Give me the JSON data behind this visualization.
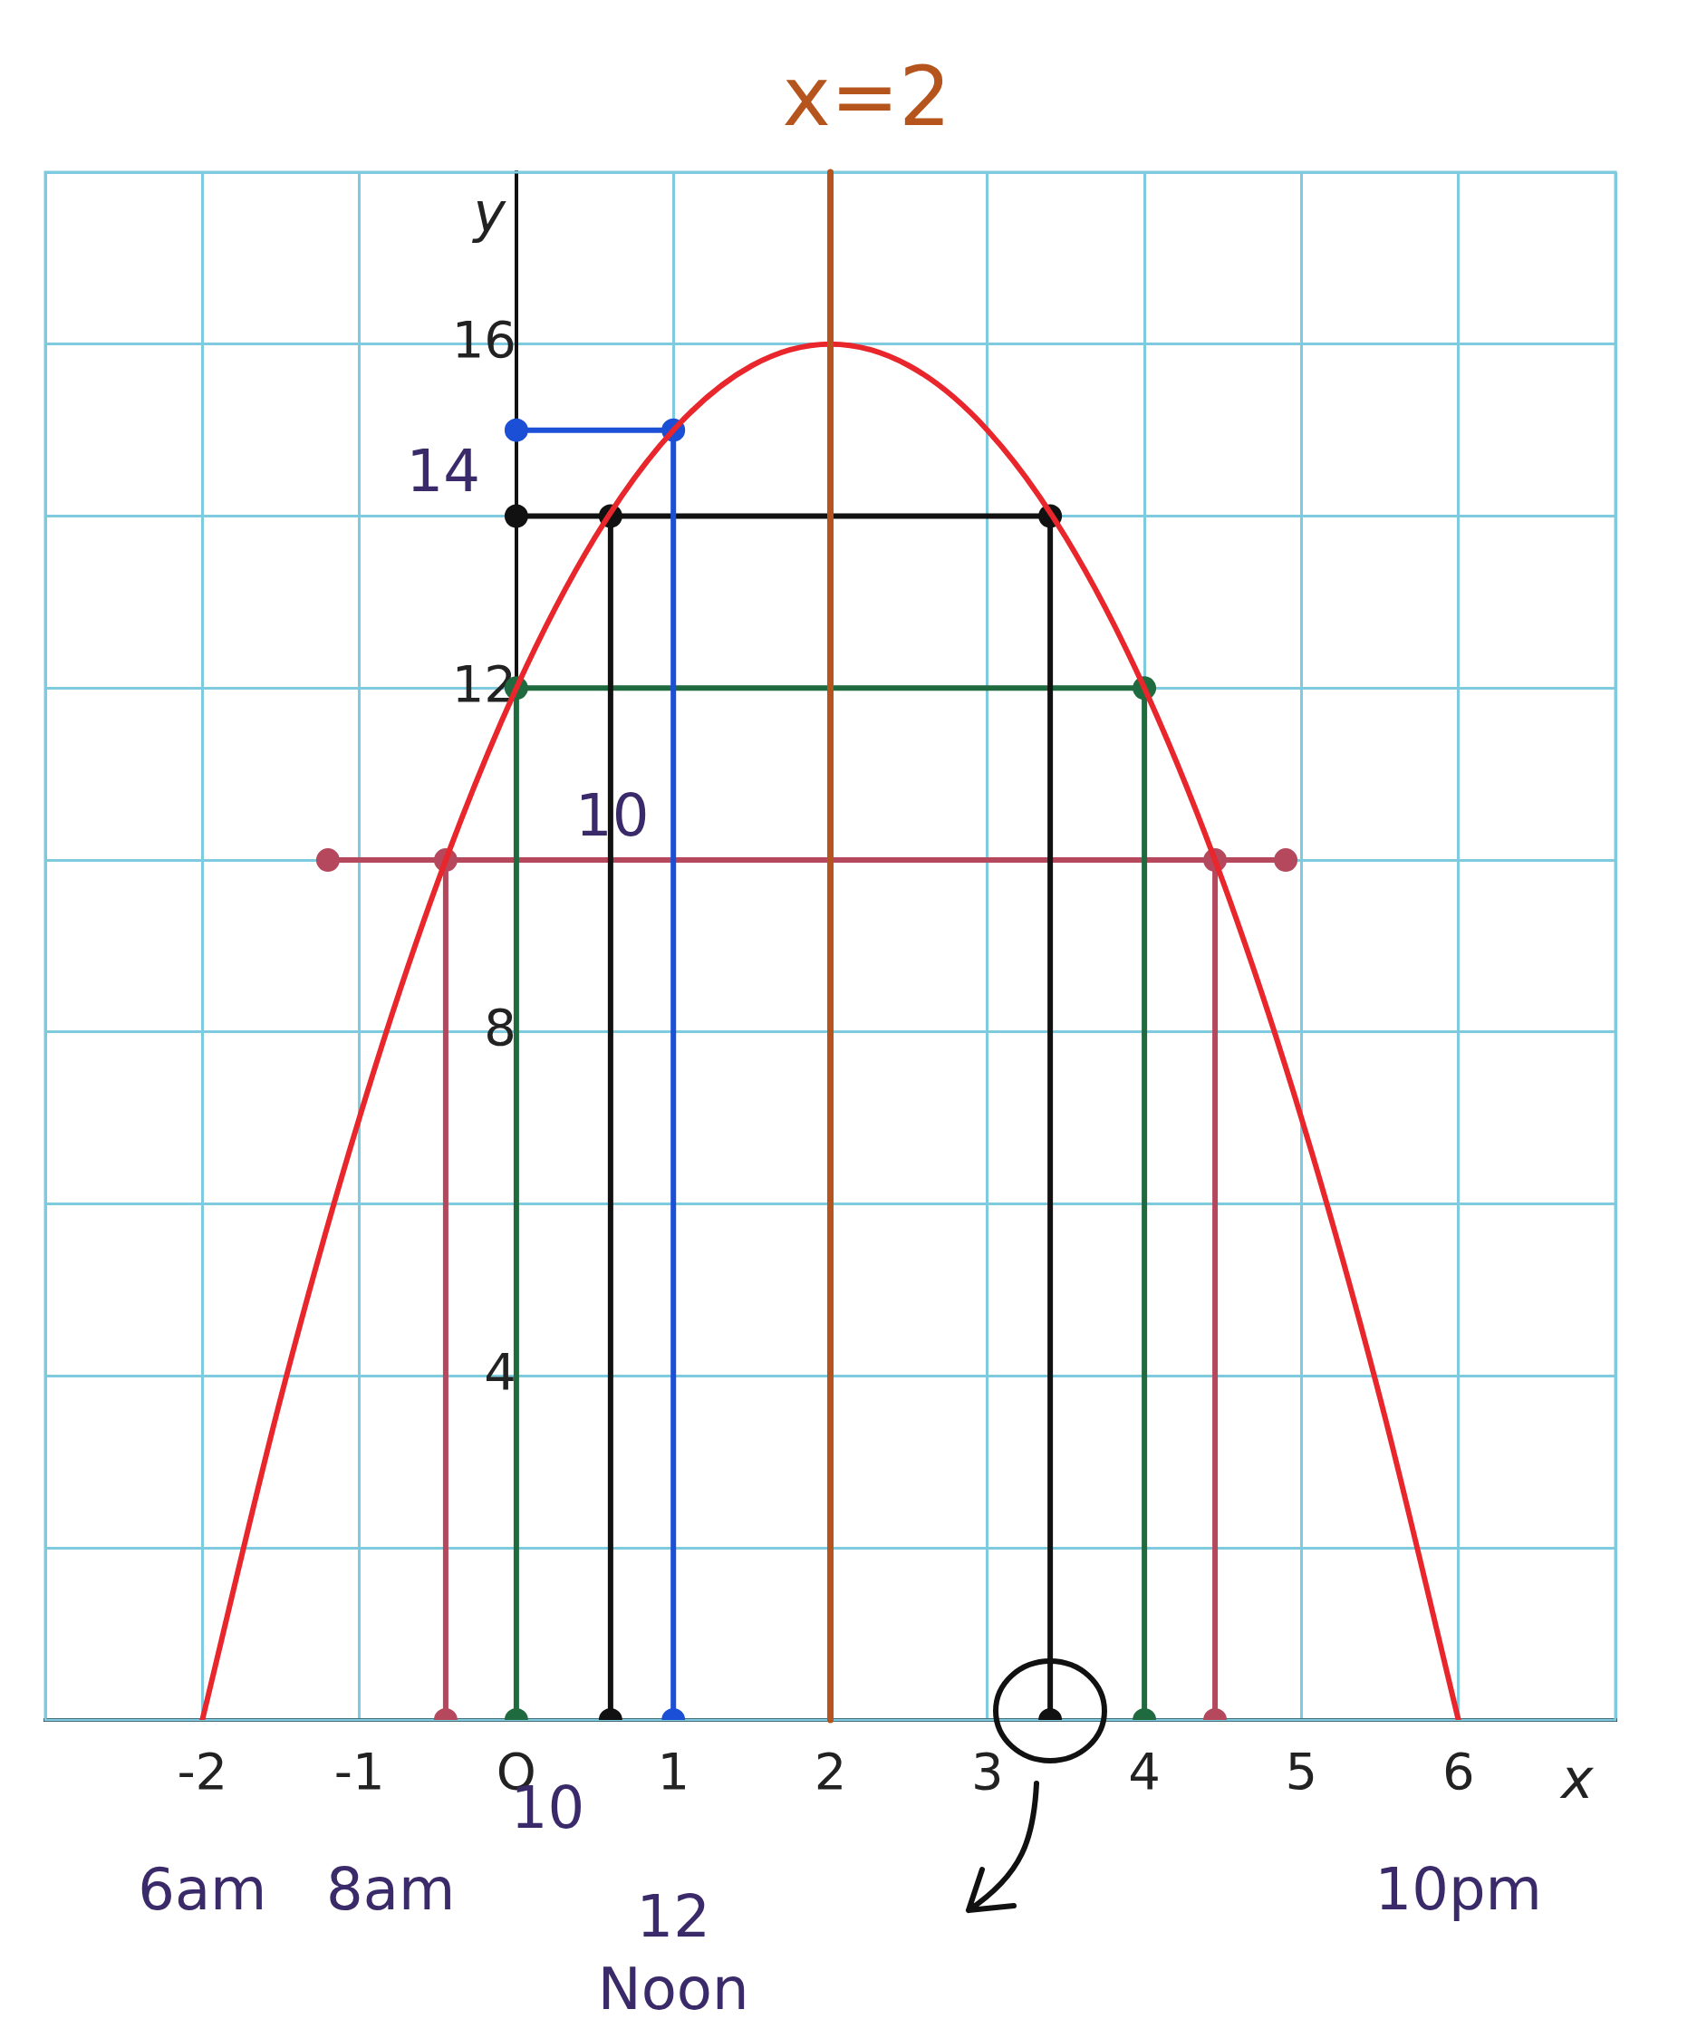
{
  "chart_data": {
    "type": "line",
    "xlabel": "x",
    "ylabel": "y",
    "xlim": [
      -3,
      7
    ],
    "ylim": [
      0,
      18
    ],
    "xticks": [
      {
        "value": -3,
        "label": null
      },
      -2,
      -1,
      {
        "value": 0,
        "label": "O"
      },
      1,
      2,
      3,
      4,
      5,
      6,
      {
        "value": 7,
        "label": null
      }
    ],
    "yticks": [
      {
        "value": 0,
        "label": null
      },
      {
        "value": 2,
        "label": null
      },
      4,
      {
        "value": 6,
        "label": null
      },
      8,
      {
        "value": 10,
        "label": null
      },
      12,
      {
        "value": 14,
        "label": null
      },
      16,
      {
        "value": 18,
        "label": null
      }
    ],
    "grid": true,
    "legend": false,
    "series": [
      {
        "color": "#e8262b",
        "marker": "none",
        "x": [
          -2,
          -1.5,
          -1,
          -0.5,
          0,
          0.5,
          1,
          1.5,
          2,
          2.5,
          3,
          3.5,
          4,
          4.5,
          5,
          5.5,
          6
        ],
        "values": [
          0,
          3.75,
          7,
          9.75,
          12,
          13.75,
          15,
          15.75,
          16,
          15.75,
          15,
          13.75,
          12,
          9.75,
          7,
          3.75,
          0
        ]
      },
      {
        "color": "#1a4fd6",
        "marker": "circle",
        "x": [
          0,
          1,
          1
        ],
        "values": [
          15,
          15,
          0
        ]
      },
      {
        "color": "#111111",
        "marker": "circle",
        "x": [
          0.6,
          0.6,
          0,
          3.4,
          3.4
        ],
        "values": [
          0,
          14,
          14,
          14,
          0
        ]
      },
      {
        "color": "#1f6b3f",
        "marker": "circle",
        "x": [
          0,
          0,
          4,
          4
        ],
        "values": [
          0,
          12,
          12,
          0
        ]
      },
      {
        "color": "#b5485d",
        "marker": "circle",
        "x": [
          -0.45,
          -0.45,
          -1.2,
          4.9,
          4.45,
          4.45
        ],
        "values": [
          0,
          10,
          10,
          10,
          10,
          0
        ]
      }
    ],
    "ref_lines": [
      {
        "axis": "x",
        "value": 2,
        "label": "x=2",
        "color": "#b5541c"
      }
    ],
    "annotations": [
      {
        "text": "14",
        "x": 0,
        "y": 14
      },
      {
        "text": "10",
        "x": 0.5,
        "y": 10
      },
      {
        "text": "6am",
        "x": -2,
        "y": 0
      },
      "8am",
      "10",
      {
        "text": "12 Noon",
        "x": 1,
        "y": 0
      },
      {
        "text": "10pm",
        "x": 6,
        "y": 0
      }
    ]
  }
}
